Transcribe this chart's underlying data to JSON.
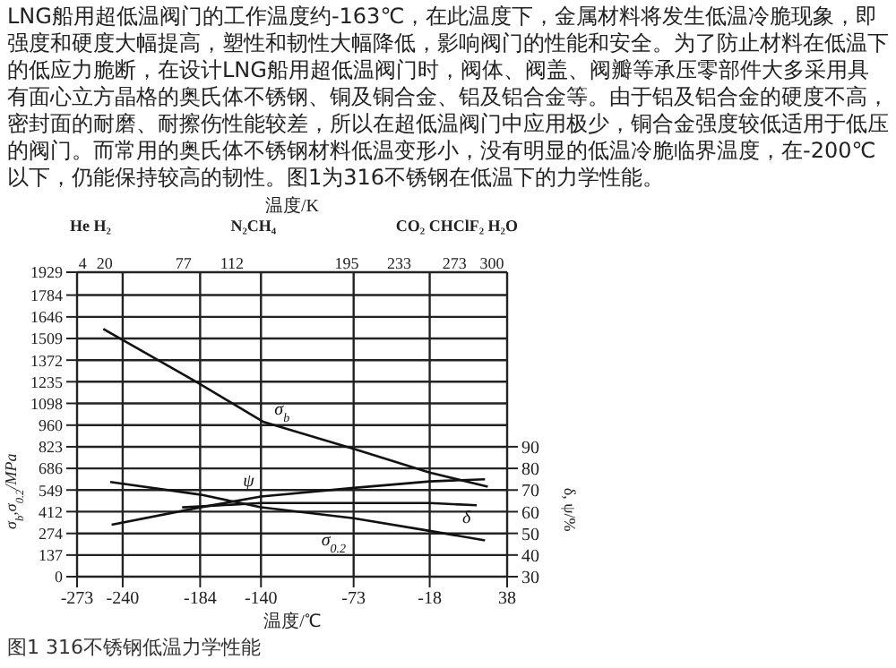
{
  "chart_data": {
    "type": "line",
    "title": "图1 316不锈钢低温力学性能",
    "annotations": [
      "LNG船用超低温阀门的工作温度约-163℃，在此温度下，金属材料将发生低温冷脆现象，即强度和硬度大幅提高，塑性和韧性大幅降低，影响阀门的性能和安全。为了防止材料在低温下的低应力脆断，在设计LNG船用超低温阀门时，阀体、阀盖、阀瓣等承压零部件大多采用具有面心立方晶格的奥氏体不锈钢、铜及铜合金、铝及铝合金等。由于铝及铝合金的硬度不高，密封面的耐磨、耐擦伤性能较差，所以在超低温阀门中应用极少，铜合金强度较低适用于低压的阀门。而常用的奥氏体不锈钢材料低温变形小，没有明显的低温冷脆临界温度，在-200℃以下，仍能保持较高的韧性。图1为316不锈钢在低温下的力学性能。",
      "He H₂",
      "N₂CH₄",
      "CO₂ CHClF₂ H₂O"
    ],
    "xlabel": "温度/℃",
    "x2label": "温度/K",
    "ylabel": "σ$_{b}$,σ$_{0.2}$/MPa",
    "y2label": "δ, ψ/%",
    "xlim": [
      -273,
      38
    ],
    "xticks": [
      -273,
      -240,
      -184,
      -140,
      -73,
      -18,
      38
    ],
    "x2lim": [
      0,
      311
    ],
    "x2ticks": [
      4,
      20,
      77,
      112,
      195,
      233,
      273,
      300
    ],
    "ylim": [
      0,
      1929
    ],
    "yticks": [
      0,
      137,
      274,
      412,
      549,
      686,
      823,
      960,
      1098,
      1235,
      1372,
      1509,
      1646,
      1784,
      1929
    ],
    "y2lim": [
      30,
      170.6
    ],
    "y2ticks": [
      30,
      40,
      50,
      60,
      70,
      80,
      90
    ],
    "grid": true,
    "marker": "none",
    "line_style": "solid",
    "series": [
      {
        "name": "σ$_{b}$",
        "color": "#111111",
        "x": [
          -254,
          -186,
          -138,
          -73,
          -18,
          24
        ],
        "values": [
          1570,
          1230,
          980,
          810,
          660,
          570
        ]
      },
      {
        "name": "σ$_{0.2}$",
        "color": "#111111",
        "x": [
          -249,
          -184,
          -140,
          -73,
          -18,
          22
        ],
        "values": [
          600,
          520,
          440,
          370,
          290,
          230
        ]
      },
      {
        "name": "ψ",
        "color": "#111111",
        "axis": "y2",
        "x": [
          -248,
          -184,
          -140,
          -73,
          -18,
          22
        ],
        "values": [
          54,
          62,
          67,
          71,
          74,
          75
        ]
      },
      {
        "name": "δ",
        "color": "#111111",
        "axis": "y2",
        "x": [
          -197,
          -140,
          -73,
          -18,
          16
        ],
        "values": [
          62,
          64,
          64,
          64,
          63
        ]
      }
    ]
  }
}
